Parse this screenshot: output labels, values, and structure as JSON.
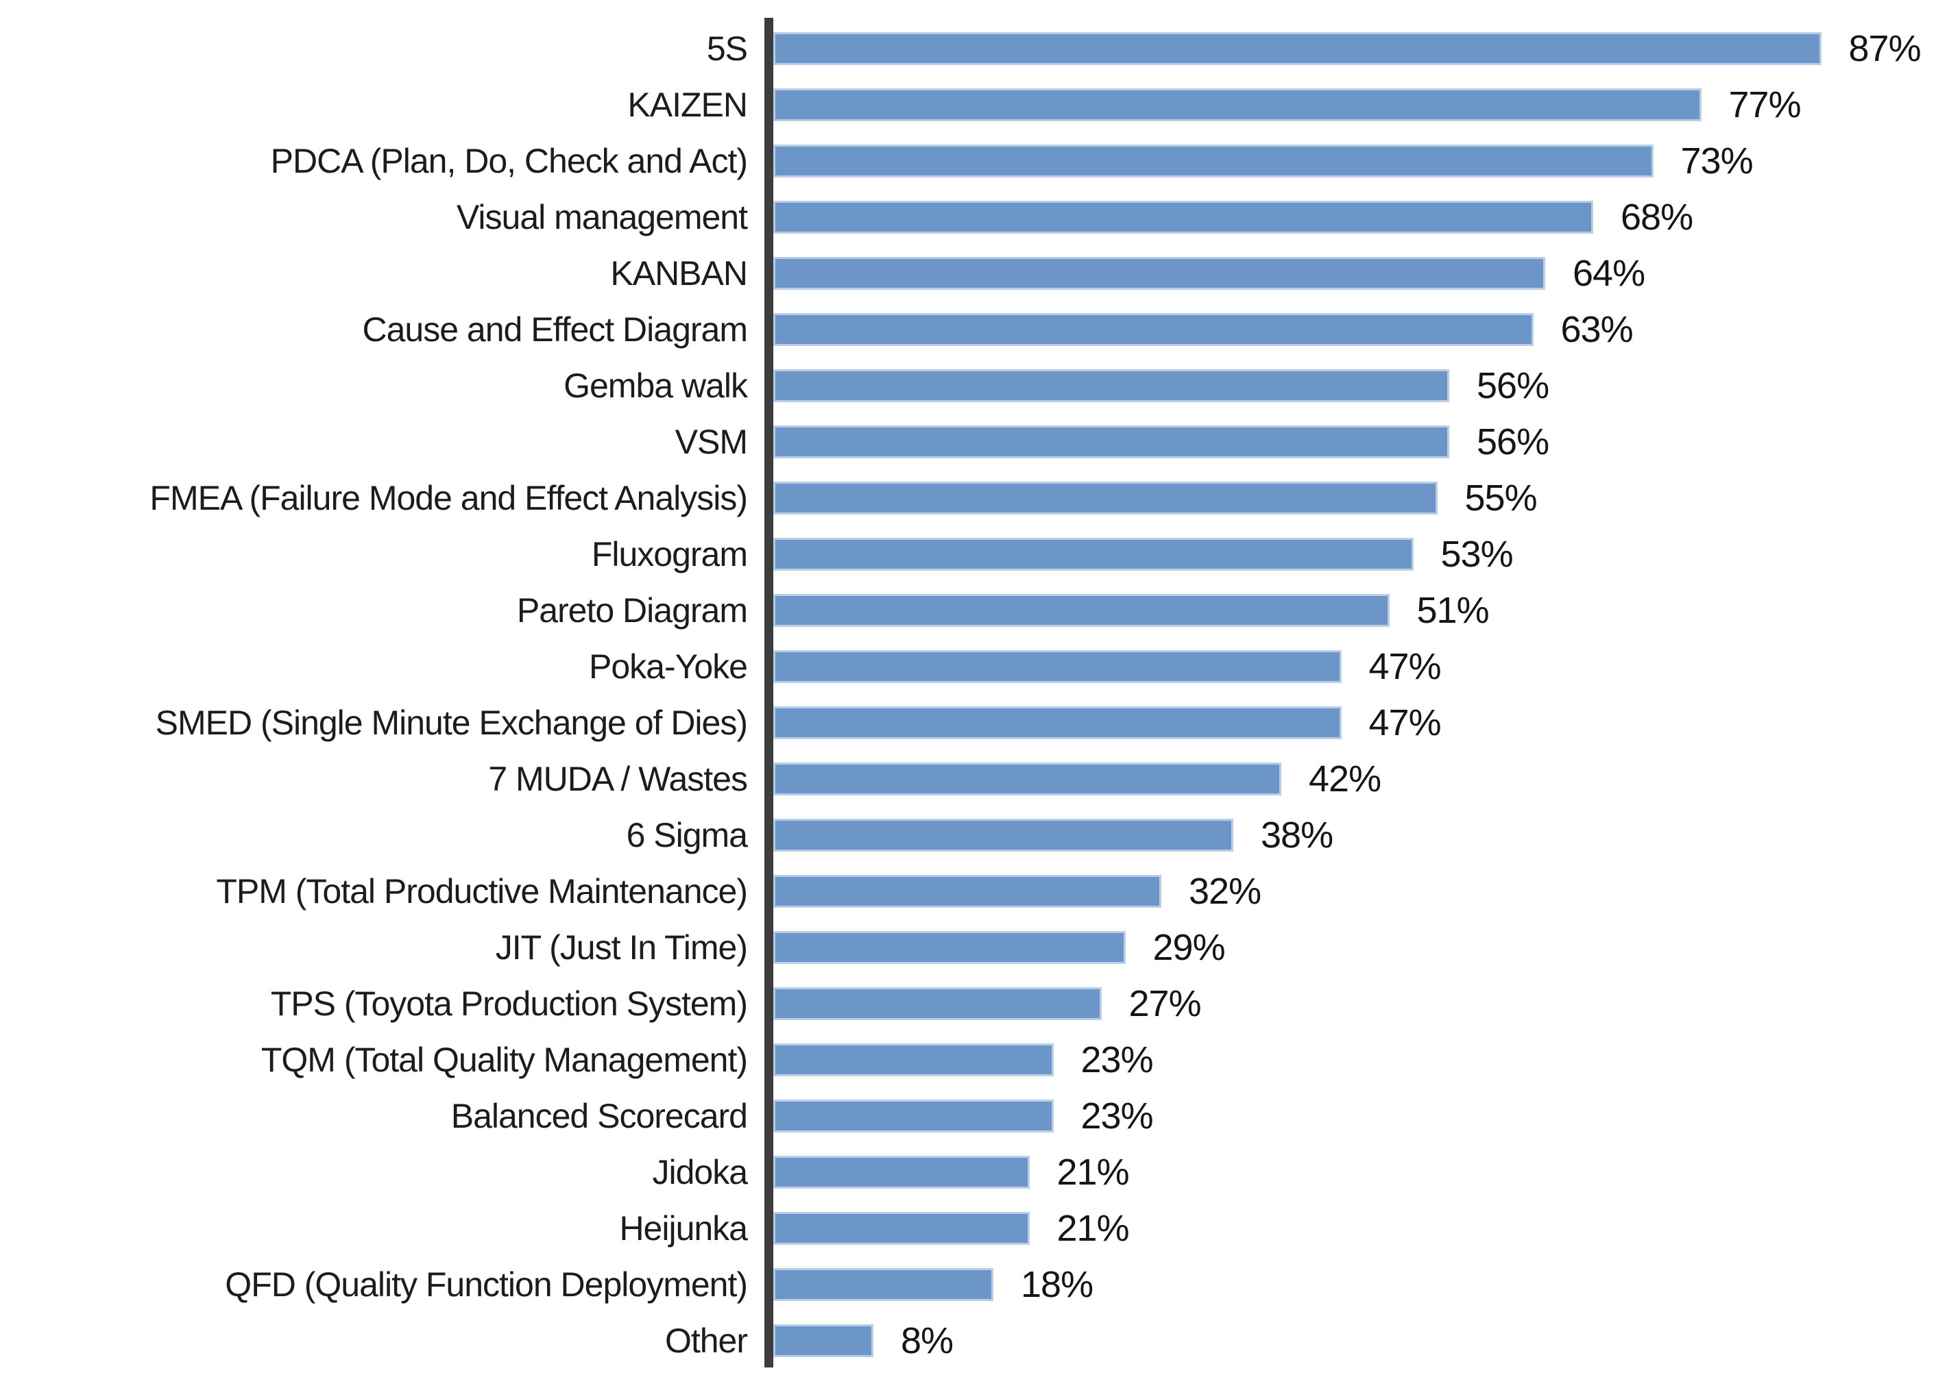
{
  "chart_data": {
    "type": "bar",
    "orientation": "horizontal",
    "title": "",
    "xlabel": "",
    "ylabel": "",
    "xlim": [
      0,
      100
    ],
    "grid": false,
    "legend": false,
    "value_label_position": "outside-end",
    "value_format": "percent",
    "bar_color": "#6d96c8",
    "bar_border_color": "#b8cde6",
    "axis_color": "#3d3d3d",
    "text_color": "#1c1c1c",
    "categories": [
      "5S",
      "KAIZEN",
      "PDCA (Plan, Do, Check and Act)",
      "Visual management",
      "KANBAN",
      "Cause and Effect Diagram",
      "Gemba walk",
      "VSM",
      "FMEA (Failure Mode and Effect Analysis)",
      "Fluxogram",
      "Pareto Diagram",
      "Poka-Yoke",
      "SMED (Single Minute Exchange of Dies)",
      "7 MUDA / Wastes",
      "6 Sigma",
      "TPM (Total Productive Maintenance)",
      "JIT (Just In Time)",
      "TPS (Toyota Production System)",
      "TQM (Total Quality Management)",
      "Balanced Scorecard",
      "Jidoka",
      "Heijunka",
      "QFD (Quality Function Deployment)",
      "Other"
    ],
    "values": [
      87,
      77,
      73,
      68,
      64,
      63,
      56,
      56,
      55,
      53,
      51,
      47,
      47,
      42,
      38,
      32,
      29,
      27,
      23,
      23,
      21,
      21,
      18,
      8
    ],
    "value_labels": [
      "87%",
      "77%",
      "73%",
      "68%",
      "64%",
      "63%",
      "56%",
      "56%",
      "55%",
      "53%",
      "51%",
      "47%",
      "47%",
      "42%",
      "38%",
      "32%",
      "29%",
      "27%",
      "23%",
      "23%",
      "21%",
      "21%",
      "18%",
      "8%"
    ]
  }
}
